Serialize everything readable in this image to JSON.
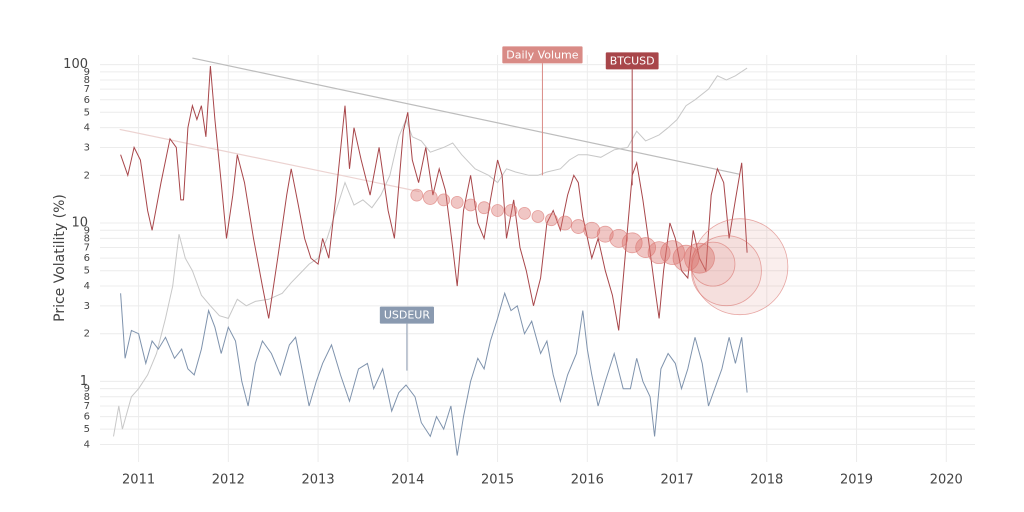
{
  "chart_data": {
    "type": "line",
    "y_label": "Price Volatility (%)",
    "log_y": true,
    "grid": true,
    "xlim": [
      2010.57,
      2020.32
    ],
    "xticks": [
      2011,
      2012,
      2013,
      2014,
      2015,
      2016,
      2017,
      2018,
      2019,
      2020
    ],
    "ylim": [
      0.31,
      115
    ],
    "yticks": [
      100,
      {
        "value": 90,
        "label": "9"
      },
      {
        "value": 80,
        "label": "8"
      },
      {
        "value": 70,
        "label": "7"
      },
      {
        "value": 60,
        "label": "6"
      },
      {
        "value": 50,
        "label": "5"
      },
      {
        "value": 40,
        "label": "4"
      },
      {
        "value": 30,
        "label": "3"
      },
      {
        "value": 20,
        "label": "2"
      },
      10,
      9,
      8,
      7,
      6,
      5,
      4,
      3,
      2,
      1,
      {
        "value": 0.9,
        "label": "9"
      },
      {
        "value": 0.8,
        "label": "8"
      },
      {
        "value": 0.7,
        "label": "7"
      },
      {
        "value": 0.6,
        "label": "6"
      },
      {
        "value": 0.5,
        "label": "5"
      },
      {
        "value": 0.4,
        "label": "4"
      }
    ],
    "series": [
      {
        "color": "#c8c8c8",
        "x": [
          2010.72,
          2010.78,
          2010.82,
          2010.92,
          2011.0,
          2011.1,
          2011.2,
          2011.3,
          2011.38,
          2011.45,
          2011.52,
          2011.6,
          2011.7,
          2011.8,
          2011.9,
          2012.0,
          2012.1,
          2012.2,
          2012.3,
          2012.45,
          2012.6,
          2012.7,
          2012.8,
          2012.9,
          2013.0,
          2013.1,
          2013.2,
          2013.3,
          2013.4,
          2013.5,
          2013.6,
          2013.7,
          2013.8,
          2013.9,
          2013.98,
          2014.05,
          2014.15,
          2014.25,
          2014.4,
          2014.5,
          2014.6,
          2014.75,
          2014.9,
          2015.0,
          2015.1,
          2015.2,
          2015.35,
          2015.45,
          2015.55,
          2015.7,
          2015.8,
          2015.9,
          2016.0,
          2016.15,
          2016.3,
          2016.45,
          2016.55,
          2016.65,
          2016.8,
          2016.9,
          2017.0,
          2017.1,
          2017.2,
          2017.35,
          2017.45,
          2017.55,
          2017.65,
          2017.78
        ],
        "values": [
          0.45,
          0.7,
          0.5,
          0.8,
          0.9,
          1.1,
          1.5,
          2.5,
          4,
          8.5,
          6,
          5,
          3.5,
          3,
          2.6,
          2.5,
          3.3,
          3.0,
          3.2,
          3.3,
          3.6,
          4.2,
          4.8,
          5.5,
          6,
          8,
          12,
          18,
          13,
          14,
          12.5,
          15,
          20,
          35,
          45,
          35,
          33,
          28,
          30,
          32,
          27,
          22,
          20,
          18,
          22,
          21,
          20,
          20,
          21,
          22,
          25,
          27,
          27,
          26,
          29,
          30,
          38,
          33,
          36,
          40,
          45,
          55,
          60,
          70,
          85,
          80,
          85,
          95
        ]
      },
      {
        "color": "#a8464a",
        "x": [
          2010.8,
          2010.88,
          2010.95,
          2011.02,
          2011.1,
          2011.15,
          2011.25,
          2011.35,
          2011.42,
          2011.47,
          2011.5,
          2011.55,
          2011.6,
          2011.65,
          2011.7,
          2011.75,
          2011.8,
          2011.85,
          2011.92,
          2011.98,
          2012.05,
          2012.1,
          2012.18,
          2012.28,
          2012.38,
          2012.45,
          2012.55,
          2012.65,
          2012.7,
          2012.78,
          2012.85,
          2012.92,
          2013.0,
          2013.05,
          2013.12,
          2013.2,
          2013.3,
          2013.35,
          2013.4,
          2013.48,
          2013.58,
          2013.68,
          2013.78,
          2013.85,
          2013.95,
          2014.0,
          2014.05,
          2014.12,
          2014.2,
          2014.28,
          2014.35,
          2014.42,
          2014.5,
          2014.55,
          2014.62,
          2014.7,
          2014.78,
          2014.85,
          2014.92,
          2015.0,
          2015.05,
          2015.1,
          2015.18,
          2015.25,
          2015.32,
          2015.4,
          2015.48,
          2015.55,
          2015.62,
          2015.7,
          2015.78,
          2015.85,
          2015.9,
          2015.95,
          2016.05,
          2016.12,
          2016.2,
          2016.28,
          2016.35,
          2016.42,
          2016.5,
          2016.55,
          2016.62,
          2016.68,
          2016.75,
          2016.8,
          2016.85,
          2016.92,
          2016.98,
          2017.05,
          2017.12,
          2017.18,
          2017.25,
          2017.32,
          2017.38,
          2017.45,
          2017.52,
          2017.58,
          2017.65,
          2017.72,
          2017.78
        ],
        "values": [
          27,
          20,
          30,
          25,
          12,
          9,
          18,
          34,
          30,
          14,
          14,
          40,
          55,
          45,
          55,
          35,
          98,
          45,
          18,
          8,
          15,
          27,
          18,
          8,
          4,
          2.5,
          6,
          15,
          22,
          13,
          8,
          6,
          5.5,
          8,
          6,
          15,
          55,
          22,
          40,
          25,
          15,
          30,
          12,
          8,
          38,
          50,
          25,
          18,
          30,
          15,
          22,
          16,
          7,
          4,
          12,
          20,
          10,
          8,
          14,
          25,
          20,
          8,
          14,
          7,
          5,
          3,
          4.5,
          10,
          12,
          9,
          15,
          20,
          18,
          11,
          6,
          8,
          5,
          3.5,
          2.1,
          6,
          20,
          24,
          14,
          8,
          4,
          2.5,
          5,
          10,
          8,
          5,
          4.5,
          9,
          6,
          5,
          15,
          22,
          18,
          8,
          14,
          24,
          6.5
        ]
      },
      {
        "color": "#7f93ad",
        "x": [
          2010.8,
          2010.85,
          2010.92,
          2011.0,
          2011.08,
          2011.15,
          2011.22,
          2011.3,
          2011.4,
          2011.48,
          2011.55,
          2011.62,
          2011.7,
          2011.78,
          2011.85,
          2011.92,
          2012.0,
          2012.08,
          2012.15,
          2012.22,
          2012.3,
          2012.38,
          2012.48,
          2012.58,
          2012.68,
          2012.75,
          2012.82,
          2012.9,
          2012.98,
          2013.05,
          2013.15,
          2013.25,
          2013.35,
          2013.45,
          2013.55,
          2013.62,
          2013.72,
          2013.82,
          2013.9,
          2013.98,
          2014.08,
          2014.15,
          2014.25,
          2014.32,
          2014.4,
          2014.48,
          2014.55,
          2014.62,
          2014.7,
          2014.78,
          2014.85,
          2014.92,
          2015.0,
          2015.08,
          2015.15,
          2015.22,
          2015.3,
          2015.38,
          2015.48,
          2015.55,
          2015.62,
          2015.7,
          2015.78,
          2015.88,
          2015.95,
          2016.0,
          2016.05,
          2016.12,
          2016.2,
          2016.3,
          2016.4,
          2016.48,
          2016.55,
          2016.62,
          2016.7,
          2016.75,
          2016.82,
          2016.9,
          2016.98,
          2017.05,
          2017.12,
          2017.2,
          2017.28,
          2017.35,
          2017.42,
          2017.5,
          2017.58,
          2017.65,
          2017.72,
          2017.78
        ],
        "values": [
          3.6,
          1.4,
          2.1,
          2.0,
          1.3,
          1.8,
          1.6,
          1.9,
          1.4,
          1.6,
          1.2,
          1.1,
          1.6,
          2.8,
          2.2,
          1.5,
          2.2,
          1.8,
          1.0,
          0.7,
          1.3,
          1.8,
          1.5,
          1.1,
          1.7,
          1.9,
          1.2,
          0.7,
          1.0,
          1.3,
          1.7,
          1.1,
          0.75,
          1.2,
          1.3,
          0.9,
          1.2,
          0.65,
          0.85,
          0.95,
          0.8,
          0.55,
          0.45,
          0.6,
          0.5,
          0.7,
          0.34,
          0.6,
          1.0,
          1.4,
          1.2,
          1.8,
          2.5,
          3.6,
          2.8,
          3.0,
          2.0,
          2.4,
          1.5,
          1.8,
          1.1,
          0.75,
          1.1,
          1.5,
          2.8,
          1.6,
          1.1,
          0.7,
          1.0,
          1.5,
          0.9,
          0.9,
          1.4,
          1.0,
          0.8,
          0.45,
          1.2,
          1.5,
          1.3,
          0.9,
          1.2,
          1.9,
          1.3,
          0.7,
          0.9,
          1.2,
          1.9,
          1.3,
          1.9,
          0.85
        ]
      }
    ],
    "trend_lines": [
      {
        "color": "#bdbdbd",
        "x": [
          2011.6,
          2017.7
        ],
        "values": [
          110,
          20.3
        ]
      },
      {
        "color": "#ecd3d1",
        "x": [
          2010.79,
          2014.13
        ],
        "values": [
          39,
          15.8
        ]
      }
    ],
    "bubbles": {
      "color": "#d9706b",
      "x": [
        2014.1,
        2014.25,
        2014.4,
        2014.55,
        2014.7,
        2014.85,
        2015.0,
        2015.15,
        2015.3,
        2015.45,
        2015.6,
        2015.75,
        2015.9,
        2016.05,
        2016.2,
        2016.35,
        2016.5,
        2016.65,
        2016.8,
        2016.95,
        2017.1,
        2017.25,
        2017.4,
        2017.55,
        2017.7
      ],
      "values": [
        15,
        14.5,
        14,
        13.5,
        13,
        12.5,
        12,
        12,
        11.5,
        11,
        10.5,
        10,
        9.5,
        9,
        8.5,
        8,
        7.5,
        7,
        6.5,
        6.5,
        6,
        6,
        5.5,
        5,
        5.3
      ],
      "sizes": [
        6,
        7,
        6,
        6,
        6,
        6,
        6,
        6,
        6,
        6,
        6,
        7,
        7,
        8,
        8,
        9,
        10,
        10,
        11,
        12,
        13,
        15,
        22,
        35,
        48
      ]
    },
    "annotations": [
      {
        "text": "Daily Volume",
        "x": 2015.5,
        "y": 20,
        "color": "#d98b86"
      },
      {
        "text": "BTCUSD",
        "x": 2016.5,
        "y": 17.3,
        "color": "#a8464a"
      },
      {
        "text": "USDEUR",
        "x": 2013.99,
        "y": 1.17,
        "color": "#8a9ab0"
      }
    ]
  }
}
